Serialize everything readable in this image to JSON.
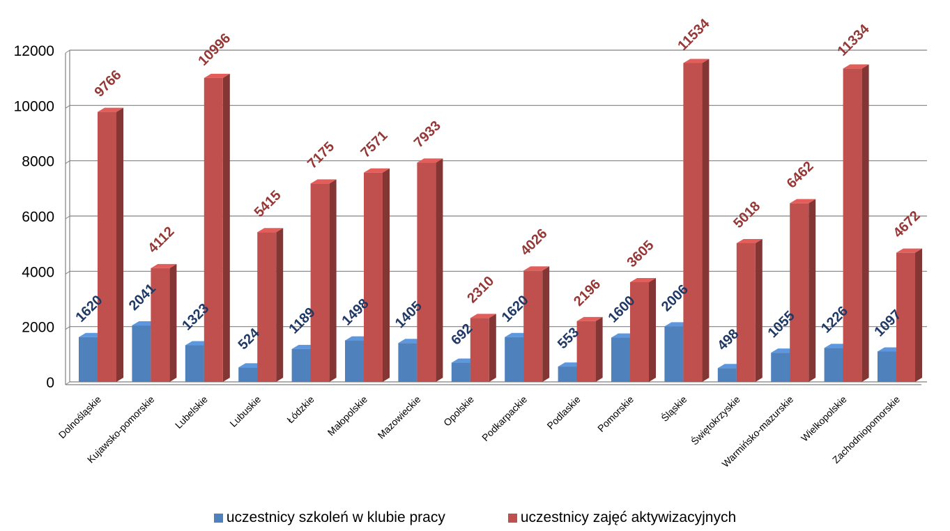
{
  "chart_data": {
    "type": "bar",
    "title": "",
    "xlabel": "",
    "ylabel": "",
    "ylim": [
      0,
      12000
    ],
    "yticks": [
      0,
      2000,
      4000,
      6000,
      8000,
      10000,
      12000
    ],
    "grid": true,
    "legend_position": "bottom",
    "style": "3d-clustered-column",
    "categories": [
      "Dolnośląskie",
      "Kujawsko-pomorskie",
      "Lubelskie",
      "Lubuskie",
      "Łódzkie",
      "Małopolskie",
      "Mazowieckie",
      "Opolskie",
      "Podkarpackie",
      "Podlaskie",
      "Pomorskie",
      "Śląskie",
      "Świętokrzyskie",
      "Warmińsko-mazurskie",
      "Wielkopolskie",
      "Zachodniopomorskie"
    ],
    "series": [
      {
        "name": "uczestnicy szkoleń w klubie pracy",
        "color": "#4F81BD",
        "label_color": "#1F3864",
        "values": [
          1620,
          2041,
          1323,
          524,
          1189,
          1498,
          1405,
          692,
          1620,
          553,
          1600,
          2006,
          498,
          1055,
          1226,
          1097
        ]
      },
      {
        "name": "uczestnicy zajęć aktywizacyjnych",
        "color": "#C0504D",
        "label_color": "#953735",
        "values": [
          9766,
          4112,
          10996,
          5415,
          7175,
          7571,
          7933,
          2310,
          4026,
          2196,
          3605,
          11534,
          5018,
          6462,
          11334,
          4672
        ]
      }
    ]
  }
}
